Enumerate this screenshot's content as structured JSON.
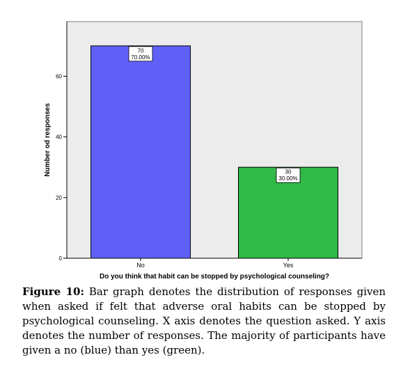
{
  "chart_data": {
    "type": "bar",
    "categories": [
      "No",
      "Yes"
    ],
    "values": [
      70,
      30
    ],
    "data_labels": [
      {
        "count": "70",
        "percent": "70.00%"
      },
      {
        "count": "30",
        "percent": "30.00%"
      }
    ],
    "bar_colors": [
      "#6060f8",
      "#30b848"
    ],
    "xlabel": "Do you think that habit can be stopped by psychological counseling?",
    "ylabel": "Number od responses",
    "ylim": [
      0,
      78
    ],
    "yticks": [
      0,
      20,
      40,
      60
    ],
    "grid": false,
    "plot_background": "#ececec"
  },
  "caption": {
    "label": "Figure 10:",
    "text": "Bar graph denotes the distribution of responses given when asked if felt that adverse oral habits can be stopped by psychological counseling. X axis denotes the question asked. Y axis denotes the number of responses. The majority of participants have given a no (blue) than yes (green)."
  }
}
